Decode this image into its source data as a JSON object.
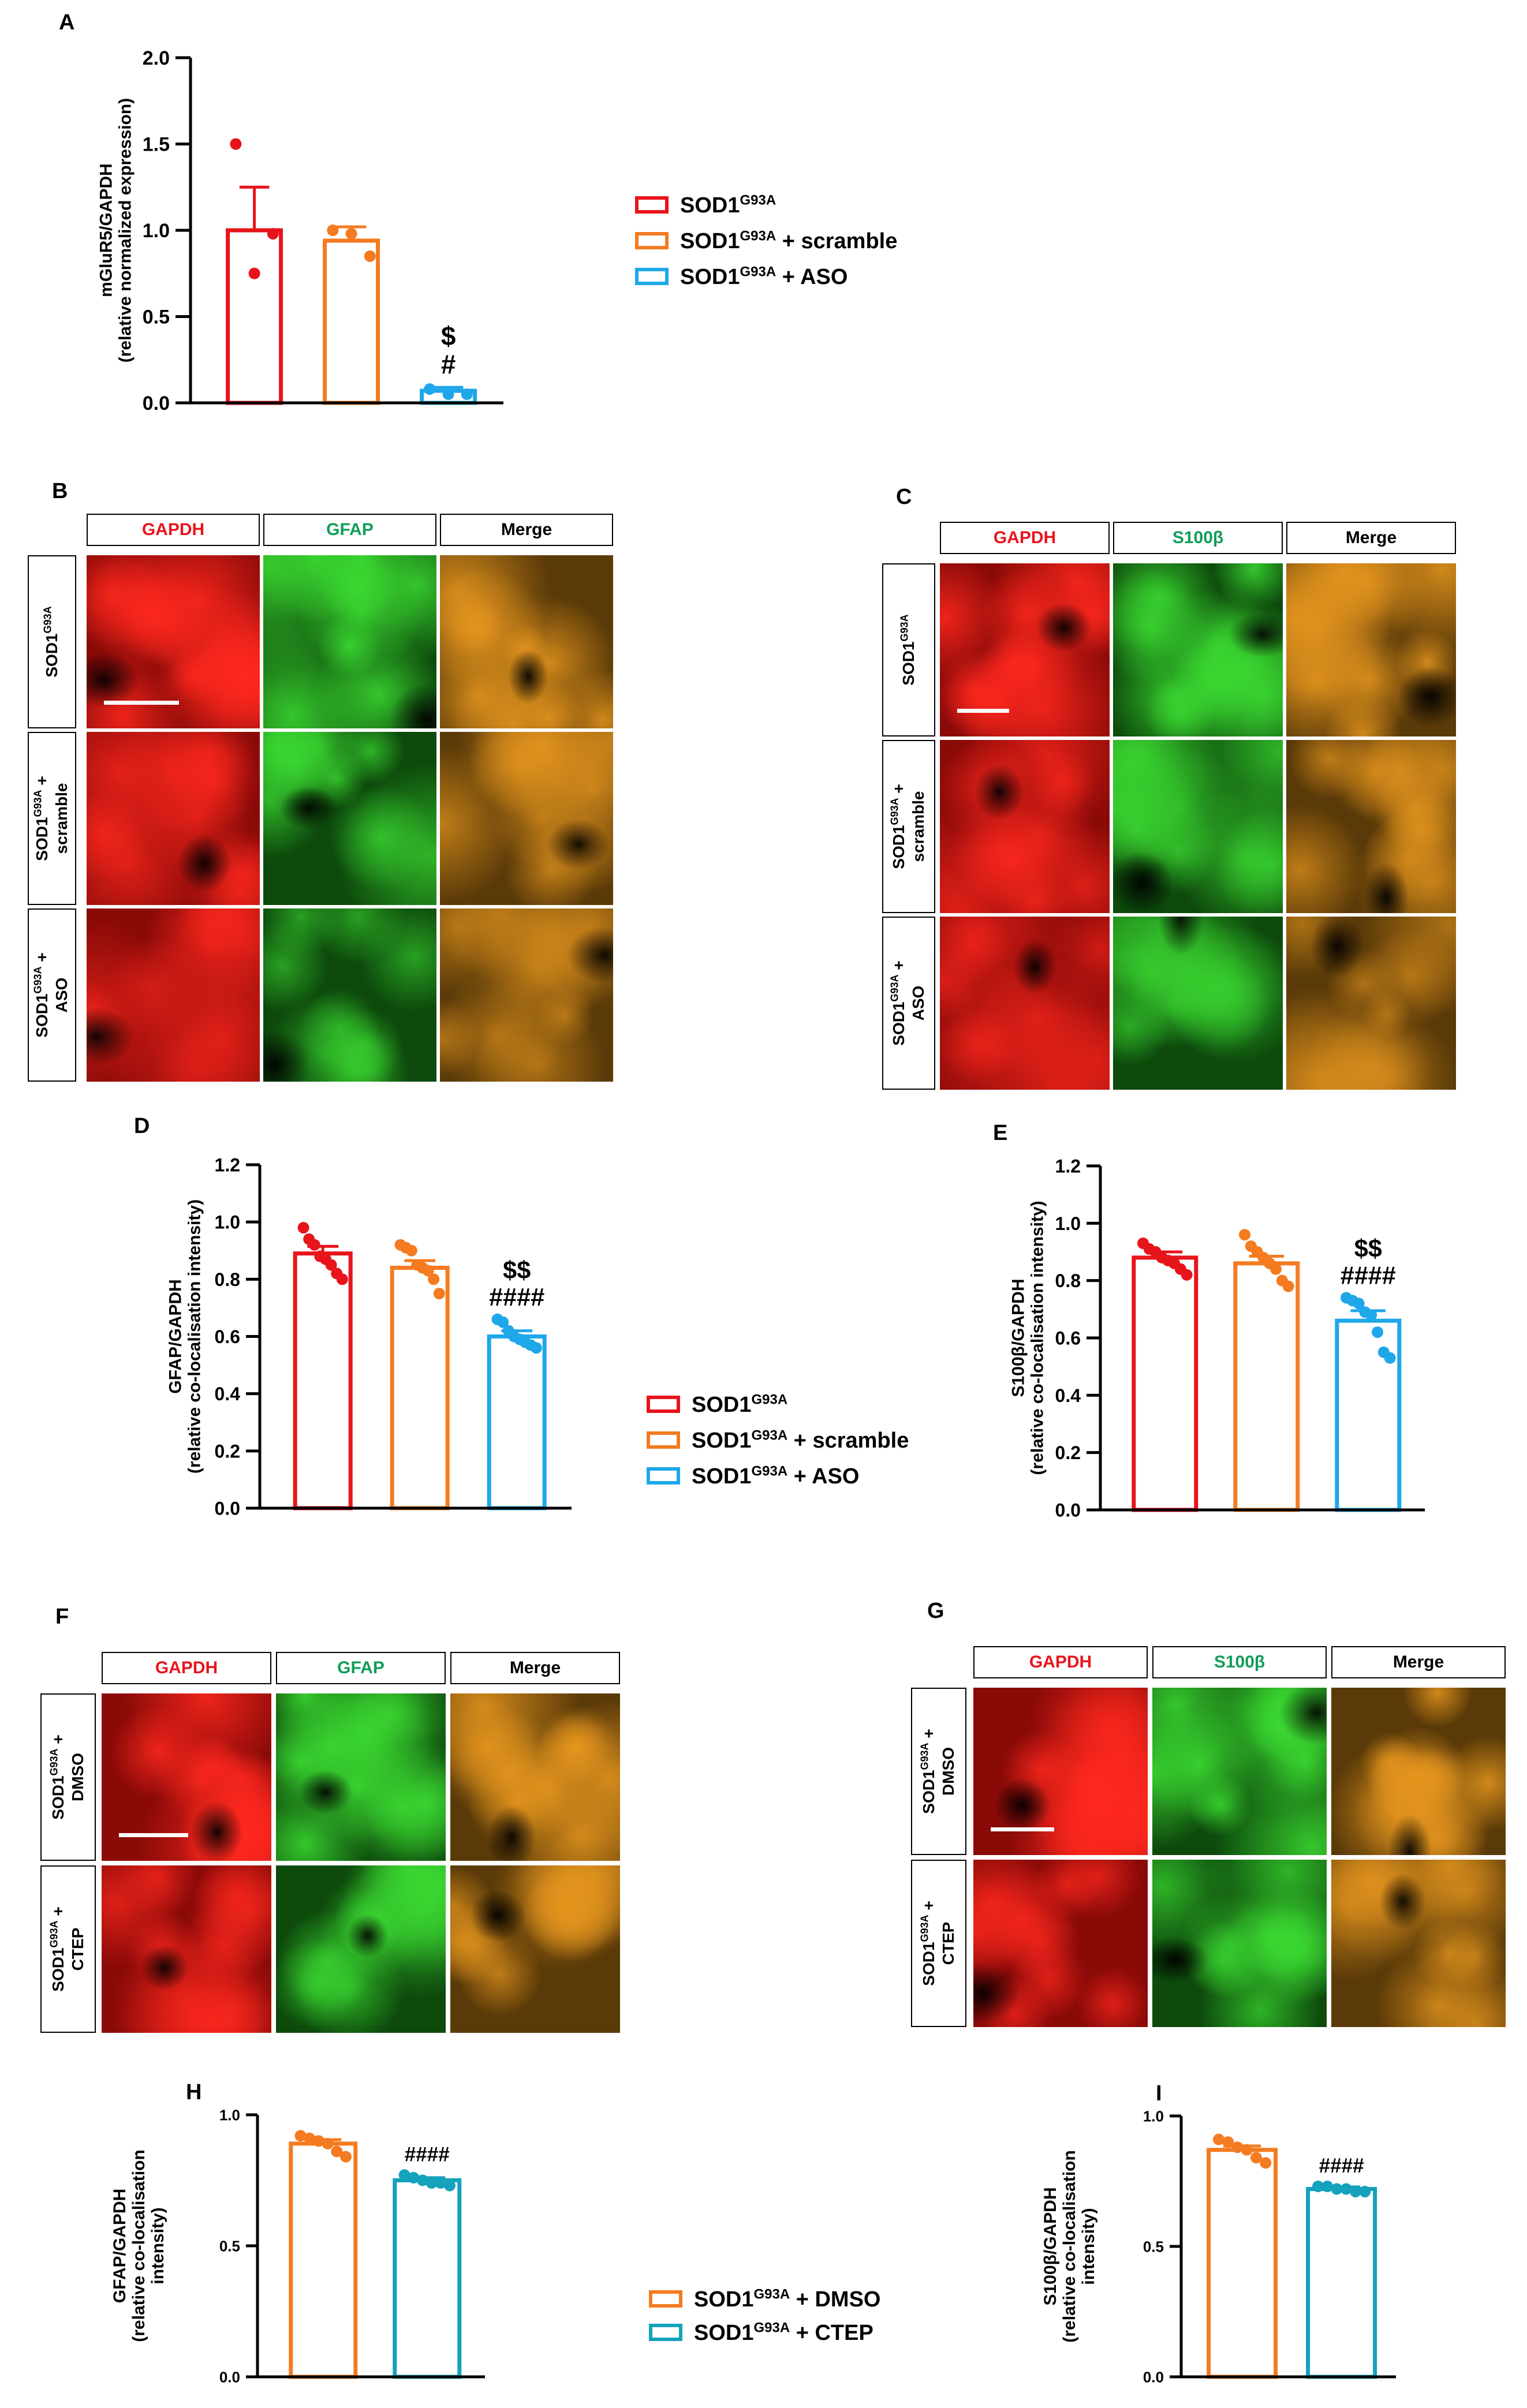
{
  "panels": {
    "A": "A",
    "B": "B",
    "C": "C",
    "D": "D",
    "E": "E",
    "F": "F",
    "G": "G",
    "H": "H",
    "I": "I"
  },
  "colors": {
    "sod1": "#e8141b",
    "scramble": "#f47b20",
    "aso": "#1ea7e9",
    "dmso": "#f47b20",
    "ctep": "#14a2bc",
    "gapdh_text": "#e8141b",
    "marker_text": "#0f9d58"
  },
  "legend1": {
    "items": [
      {
        "base": "SOD1",
        "sup": "G93A",
        "suffix": ""
      },
      {
        "base": "SOD1",
        "sup": "G93A",
        "suffix": " + scramble"
      },
      {
        "base": "SOD1",
        "sup": "G93A",
        "suffix": " + ASO"
      }
    ]
  },
  "legend2": {
    "items": [
      {
        "base": "SOD1",
        "sup": "G93A",
        "suffix": " + DMSO"
      },
      {
        "base": "SOD1",
        "sup": "G93A",
        "suffix": " + CTEP"
      }
    ]
  },
  "image_panels": {
    "B": {
      "headers": [
        "GAPDH",
        "GFAP",
        "Merge"
      ],
      "rows": [
        {
          "base": "SOD1",
          "sup": "G93A",
          "line2": ""
        },
        {
          "base": "SOD1",
          "sup": "G93A",
          "line2": "scramble"
        },
        {
          "base": "SOD1",
          "sup": "G93A",
          "line2": "ASO"
        }
      ]
    },
    "C": {
      "headers": [
        "GAPDH",
        "S100β",
        "Merge"
      ],
      "rows": [
        {
          "base": "SOD1",
          "sup": "G93A",
          "line2": ""
        },
        {
          "base": "SOD1",
          "sup": "G93A",
          "line2": "scramble"
        },
        {
          "base": "SOD1",
          "sup": "G93A",
          "line2": "ASO"
        }
      ]
    },
    "F": {
      "headers": [
        "GAPDH",
        "GFAP",
        "Merge"
      ],
      "rows": [
        {
          "base": "SOD1",
          "sup": "G93A",
          "line2": "DMSO"
        },
        {
          "base": "SOD1",
          "sup": "G93A",
          "line2": "CTEP"
        }
      ]
    },
    "G": {
      "headers": [
        "GAPDH",
        "S100β",
        "Merge"
      ],
      "rows": [
        {
          "base": "SOD1",
          "sup": "G93A",
          "line2": "DMSO"
        },
        {
          "base": "SOD1",
          "sup": "G93A",
          "line2": "CTEP"
        }
      ]
    }
  },
  "chart_data": [
    {
      "id": "A",
      "type": "bar",
      "ylabel": [
        "mGluR5/GAPDH",
        "(relative normalized expression)"
      ],
      "ylim": [
        0,
        2.0
      ],
      "yticks": [
        "0.0",
        "0.5",
        "1.0",
        "1.5",
        "2.0"
      ],
      "ytick_values": [
        0,
        0.5,
        1.0,
        1.5,
        2.0
      ],
      "categories": [
        "SOD1G93A",
        "SOD1G93A + scramble",
        "SOD1G93A + ASO"
      ],
      "values": [
        1.0,
        0.94,
        0.07
      ],
      "sem": [
        0.25,
        0.08,
        0.02
      ],
      "points": [
        [
          1.5,
          0.75,
          0.98
        ],
        [
          1.0,
          0.98,
          0.85
        ],
        [
          0.08,
          0.05,
          0.05
        ]
      ],
      "annotations": [
        [],
        [],
        [
          "$",
          "#"
        ]
      ],
      "color_keys": [
        "sod1",
        "scramble",
        "aso"
      ]
    },
    {
      "id": "D",
      "type": "bar",
      "ylabel": [
        "GFAP/GAPDH",
        "(relative co-localisation intensity)"
      ],
      "ylim": [
        0,
        1.2
      ],
      "yticks": [
        "0.0",
        "0.2",
        "0.4",
        "0.6",
        "0.8",
        "1.0",
        "1.2"
      ],
      "ytick_values": [
        0,
        0.2,
        0.4,
        0.6,
        0.8,
        1.0,
        1.2
      ],
      "categories": [
        "SOD1G93A",
        "SOD1G93A + scramble",
        "SOD1G93A + ASO"
      ],
      "values": [
        0.89,
        0.84,
        0.6
      ],
      "sem": [
        0.025,
        0.025,
        0.02
      ],
      "points": [
        [
          0.98,
          0.94,
          0.92,
          0.88,
          0.87,
          0.85,
          0.82,
          0.8
        ],
        [
          0.92,
          0.91,
          0.9,
          0.85,
          0.84,
          0.83,
          0.8,
          0.75
        ],
        [
          0.66,
          0.65,
          0.62,
          0.6,
          0.59,
          0.58,
          0.57,
          0.56
        ]
      ],
      "annotations": [
        [],
        [],
        [
          "$$",
          "####"
        ]
      ],
      "color_keys": [
        "sod1",
        "scramble",
        "aso"
      ]
    },
    {
      "id": "E",
      "type": "bar",
      "ylabel": [
        "S100β/GAPDH",
        "(relative co-localisation intensity)"
      ],
      "ylim": [
        0,
        1.2
      ],
      "yticks": [
        "0.0",
        "0.2",
        "0.4",
        "0.6",
        "0.8",
        "1.0",
        "1.2"
      ],
      "ytick_values": [
        0,
        0.2,
        0.4,
        0.6,
        0.8,
        1.0,
        1.2
      ],
      "categories": [
        "SOD1G93A",
        "SOD1G93A + scramble",
        "SOD1G93A + ASO"
      ],
      "values": [
        0.88,
        0.86,
        0.66
      ],
      "sem": [
        0.02,
        0.025,
        0.035
      ],
      "points": [
        [
          0.93,
          0.91,
          0.9,
          0.88,
          0.87,
          0.86,
          0.84,
          0.82
        ],
        [
          0.96,
          0.92,
          0.9,
          0.88,
          0.86,
          0.84,
          0.8,
          0.78
        ],
        [
          0.74,
          0.73,
          0.72,
          0.69,
          0.68,
          0.62,
          0.55,
          0.53
        ]
      ],
      "annotations": [
        [],
        [],
        [
          "$$",
          "####"
        ]
      ],
      "color_keys": [
        "sod1",
        "scramble",
        "aso"
      ]
    },
    {
      "id": "H",
      "type": "bar",
      "ylabel": [
        "GFAP/GAPDH",
        "(relative co-localisation",
        "intensity)"
      ],
      "ylim": [
        0,
        1.0
      ],
      "yticks": [
        "0.0",
        "0.5",
        "1.0"
      ],
      "ytick_values": [
        0,
        0.5,
        1.0
      ],
      "categories": [
        "SOD1G93A + DMSO",
        "SOD1G93A + CTEP"
      ],
      "values": [
        0.89,
        0.75
      ],
      "sem": [
        0.015,
        0.01
      ],
      "points": [
        [
          0.92,
          0.91,
          0.9,
          0.89,
          0.86,
          0.84
        ],
        [
          0.77,
          0.76,
          0.75,
          0.74,
          0.74,
          0.73
        ]
      ],
      "annotations": [
        [],
        [
          "####"
        ]
      ],
      "color_keys": [
        "dmso",
        "ctep"
      ]
    },
    {
      "id": "I",
      "type": "bar",
      "ylabel": [
        "S100β/GAPDH",
        "(relative co-localisation",
        "intensity)"
      ],
      "ylim": [
        0,
        1.0
      ],
      "yticks": [
        "0.0",
        "0.5",
        "1.0"
      ],
      "ytick_values": [
        0,
        0.5,
        1.0
      ],
      "categories": [
        "SOD1G93A + DMSO",
        "SOD1G93A + CTEP"
      ],
      "values": [
        0.87,
        0.72
      ],
      "sem": [
        0.015,
        0.008
      ],
      "points": [
        [
          0.91,
          0.9,
          0.88,
          0.87,
          0.84,
          0.82
        ],
        [
          0.73,
          0.73,
          0.72,
          0.72,
          0.71,
          0.71
        ]
      ],
      "annotations": [
        [],
        [
          "####"
        ]
      ],
      "color_keys": [
        "dmso",
        "ctep"
      ]
    }
  ]
}
